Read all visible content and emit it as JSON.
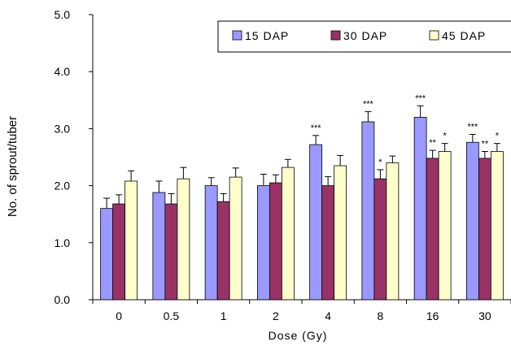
{
  "chart_data": {
    "type": "bar",
    "xlabel": "Dose (Gy)",
    "ylabel": "No. of sprout/tuber",
    "ylim": [
      0,
      5
    ],
    "yticks": [
      "0.0",
      "1.0",
      "2.0",
      "3.0",
      "4.0",
      "5.0"
    ],
    "categories": [
      "0",
      "0.5",
      "1",
      "2",
      "4",
      "8",
      "16",
      "30"
    ],
    "grid": false,
    "legend_position": "top-right",
    "series": [
      {
        "name": "15 DAP",
        "color": "#9999ff",
        "values": [
          1.6,
          1.88,
          2.0,
          2.0,
          2.72,
          3.12,
          3.2,
          2.76
        ],
        "errors": [
          0.18,
          0.2,
          0.14,
          0.2,
          0.16,
          0.18,
          0.2,
          0.14
        ],
        "significance": [
          "",
          "",
          "",
          "",
          "***",
          "***",
          "***",
          "***"
        ]
      },
      {
        "name": "30 DAP",
        "color": "#993366",
        "values": [
          1.68,
          1.68,
          1.72,
          2.05,
          2.0,
          2.12,
          2.48,
          2.48
        ],
        "errors": [
          0.16,
          0.18,
          0.14,
          0.14,
          0.16,
          0.16,
          0.14,
          0.12
        ],
        "significance": [
          "",
          "",
          "",
          "",
          "",
          "*",
          "**",
          "**"
        ]
      },
      {
        "name": "45 DAP",
        "color": "#ffffcc",
        "values": [
          2.08,
          2.12,
          2.15,
          2.32,
          2.35,
          2.4,
          2.6,
          2.6
        ],
        "errors": [
          0.18,
          0.2,
          0.16,
          0.14,
          0.18,
          0.12,
          0.14,
          0.14
        ],
        "significance": [
          "",
          "",
          "",
          "",
          "",
          "",
          "*",
          "*"
        ]
      }
    ]
  }
}
